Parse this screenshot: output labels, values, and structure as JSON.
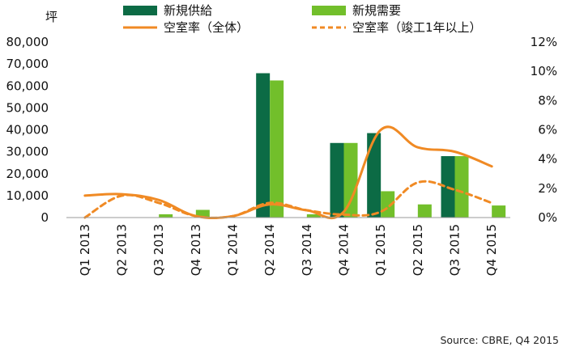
{
  "chart_data": {
    "type": "bar",
    "unit_label": "坪",
    "categories": [
      "Q1 2013",
      "Q2 2013",
      "Q3 2013",
      "Q4 2013",
      "Q1 2014",
      "Q2 2014",
      "Q3 2014",
      "Q4 2014",
      "Q1 2015",
      "Q2 2015",
      "Q3 2015",
      "Q4 2015"
    ],
    "series": [
      {
        "name": "新規供給",
        "kind": "bar",
        "axis": "left",
        "color": "#0c6b45",
        "values": [
          0,
          0,
          0,
          0,
          0,
          65800,
          0,
          34000,
          38500,
          0,
          28000,
          0
        ]
      },
      {
        "name": "新規需要",
        "kind": "bar",
        "axis": "left",
        "color": "#72bf2b",
        "values": [
          0,
          0,
          1500,
          3500,
          0,
          62500,
          1500,
          34000,
          12000,
          6000,
          28000,
          5500
        ]
      },
      {
        "name": "空室率（全体）",
        "kind": "line",
        "style": "solid",
        "axis": "right",
        "color": "#f08a24",
        "values": [
          1.5,
          1.6,
          1.2,
          0.1,
          0.1,
          0.9,
          0.5,
          0.4,
          6.0,
          4.8,
          4.5,
          3.5
        ]
      },
      {
        "name": "空室率（竣工1年以上）",
        "kind": "line",
        "style": "dashed",
        "axis": "right",
        "color": "#f08a24",
        "values": [
          0.0,
          1.5,
          1.0,
          0.1,
          0.1,
          1.0,
          0.5,
          0.2,
          0.4,
          2.4,
          1.9,
          1.0
        ]
      }
    ],
    "y_left": {
      "ylim": [
        0,
        80000
      ],
      "ticks": [
        "0",
        "10,000",
        "20,000",
        "30,000",
        "40,000",
        "50,000",
        "60,000",
        "70,000",
        "80,000"
      ]
    },
    "y_right": {
      "ylim": [
        0,
        12
      ],
      "ticks": [
        "0%",
        "2%",
        "4%",
        "6%",
        "8%",
        "10%",
        "12%"
      ]
    },
    "grid": false,
    "legend_position": "top",
    "source": "Source:  CBRE,  Q4  2015"
  }
}
